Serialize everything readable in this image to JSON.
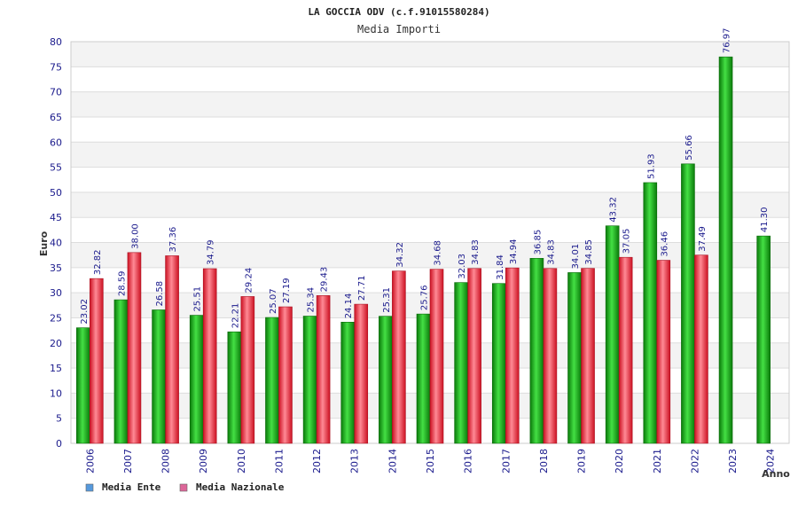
{
  "chart_data": {
    "type": "bar",
    "title": "LA GOCCIA ODV (c.f.91015580284)",
    "subtitle": "Media Importi",
    "xlabel": "Anno",
    "ylabel": "Euro",
    "ylim": [
      0,
      80
    ],
    "ytick_step": 5,
    "grid": true,
    "legend_position": "bottom-left",
    "categories": [
      "2006",
      "2007",
      "2008",
      "2009",
      "2010",
      "2011",
      "2012",
      "2013",
      "2014",
      "2015",
      "2016",
      "2017",
      "2018",
      "2019",
      "2020",
      "2021",
      "2022",
      "2023",
      "2024"
    ],
    "series": [
      {
        "name": "Media Ente",
        "color": "#22bb22",
        "legend_color": "#5599dd",
        "values": [
          23.02,
          28.59,
          26.58,
          25.51,
          22.21,
          25.07,
          25.34,
          24.14,
          25.31,
          25.76,
          32.03,
          31.84,
          36.85,
          34.01,
          43.32,
          51.93,
          55.66,
          76.97,
          41.3
        ],
        "labels": [
          "23.02",
          "28.59",
          "26.58",
          "25.51",
          "22.21",
          "25.07",
          "25.34",
          "24.14",
          "25.31",
          "25.76",
          "32.03",
          "31.84",
          "36.85",
          "34.01",
          "43.32",
          "51.93",
          "55.66",
          "76.97",
          "41.30"
        ]
      },
      {
        "name": "Media Nazionale",
        "color": "#ee3344",
        "legend_color": "#dd6699",
        "values": [
          32.82,
          38.0,
          37.36,
          34.79,
          29.24,
          27.19,
          29.43,
          27.71,
          34.32,
          34.68,
          34.83,
          34.94,
          34.83,
          34.85,
          37.05,
          36.46,
          37.49,
          null,
          null
        ],
        "labels": [
          "32.82",
          "38.00",
          "37.36",
          "34.79",
          "29.24",
          "27.19",
          "29.43",
          "27.71",
          "34.32",
          "34.68",
          "34.83",
          "34.94",
          "34.83",
          "34.85",
          "37.05",
          "36.46",
          "37.49",
          null,
          null
        ]
      }
    ]
  }
}
